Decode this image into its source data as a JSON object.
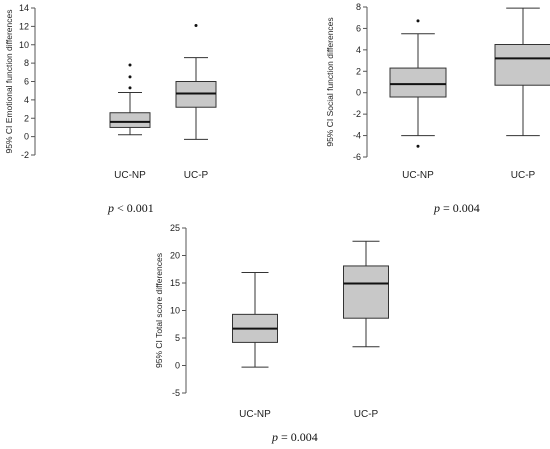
{
  "chart_data": [
    {
      "type": "box",
      "ylabel": "95% CI Emotional function differences",
      "ylim": [
        -2,
        14
      ],
      "yticks": [
        -2,
        0,
        2,
        4,
        6,
        8,
        10,
        12,
        14
      ],
      "categories": [
        "UC-NP",
        "UC-P"
      ],
      "boxes": [
        {
          "category": "UC-NP",
          "whisker_low": 0.2,
          "q1": 1.0,
          "median": 1.6,
          "q3": 2.6,
          "whisker_high": 4.8,
          "outliers": [
            5.3,
            6.5,
            7.8
          ]
        },
        {
          "category": "UC-P",
          "whisker_low": -0.3,
          "q1": 3.2,
          "median": 4.7,
          "q3": 6.0,
          "whisker_high": 8.6,
          "outliers": [
            12.1
          ]
        }
      ],
      "p_label": "p",
      "p_value": "< 0.001"
    },
    {
      "type": "box",
      "ylabel": "95% CI Social function differences",
      "ylim": [
        -6,
        8
      ],
      "yticks": [
        -6,
        -4,
        -2,
        0,
        2,
        4,
        6,
        8
      ],
      "categories": [
        "UC-NP",
        "UC-P"
      ],
      "boxes": [
        {
          "category": "UC-NP",
          "whisker_low": -4.0,
          "q1": -0.4,
          "median": 0.8,
          "q3": 2.3,
          "whisker_high": 5.5,
          "outliers": [
            6.7,
            -5.0
          ]
        },
        {
          "category": "UC-P",
          "whisker_low": -4.0,
          "q1": 0.7,
          "median": 3.2,
          "q3": 4.5,
          "whisker_high": 7.9,
          "outliers": []
        }
      ],
      "p_label": "p",
      "p_value": "= 0.004"
    },
    {
      "type": "box",
      "ylabel": "95% CI Total score differences",
      "ylim": [
        -5,
        25
      ],
      "yticks": [
        -5,
        0,
        5,
        10,
        15,
        20,
        25
      ],
      "categories": [
        "UC-NP",
        "UC-P"
      ],
      "boxes": [
        {
          "category": "UC-NP",
          "whisker_low": -0.3,
          "q1": 4.2,
          "median": 6.7,
          "q3": 9.3,
          "whisker_high": 16.9,
          "outliers": []
        },
        {
          "category": "UC-P",
          "whisker_low": 3.4,
          "q1": 8.6,
          "median": 14.9,
          "q3": 18.1,
          "whisker_high": 22.6,
          "outliers": []
        }
      ],
      "p_label": "p",
      "p_value": "= 0.004"
    }
  ],
  "colors": {
    "box_fill": "#c8c8c8",
    "stroke": "#333333",
    "axis": "#555555"
  }
}
